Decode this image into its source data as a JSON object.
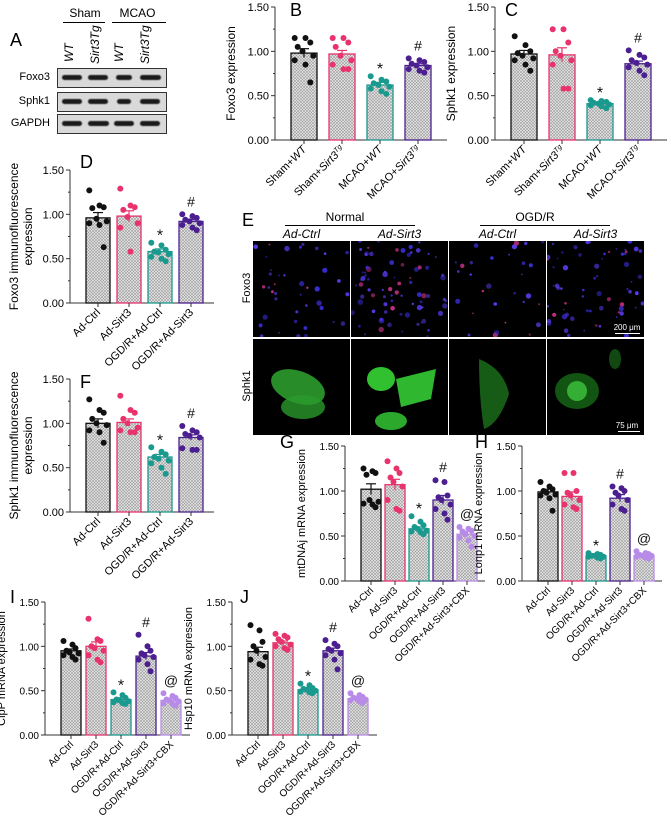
{
  "figure": {
    "panel_letters": [
      "A",
      "B",
      "C",
      "D",
      "E",
      "F",
      "G",
      "H",
      "I",
      "J"
    ]
  },
  "panelA": {
    "letter": "A",
    "group_headers": [
      "Sham",
      "MCAO"
    ],
    "column_labels": [
      "WT",
      "Sirt3Tg",
      "WT",
      "Sirt3Tg"
    ],
    "row_labels": [
      "Foxo3",
      "Sphk1",
      "GAPDH"
    ],
    "band_widths": [
      [
        1,
        1,
        0.8,
        1.05
      ],
      [
        1,
        1,
        0.7,
        1
      ],
      [
        1,
        1.05,
        1,
        1
      ]
    ]
  },
  "panelE": {
    "letter": "E",
    "group_headers": [
      "Normal",
      "OGD/R"
    ],
    "column_labels": [
      "Ad-Ctrl",
      "Ad-Sirt3",
      "Ad-Ctrl",
      "Ad-Sirt3"
    ],
    "row_labels": [
      "Foxo3",
      "Sphk1"
    ],
    "scale_bars": [
      "200 μm",
      "75 μm"
    ]
  },
  "chart_data": [
    {
      "id": "B",
      "type": "bar",
      "title": "",
      "ylabel": "Foxo3 expression",
      "categories": [
        "Sham+WT",
        "Sham+Sirt3Tg",
        "MCAO+WT",
        "MCAO+Sirt3Tg"
      ],
      "values": [
        0.98,
        0.97,
        0.62,
        0.84
      ],
      "sem": [
        0.05,
        0.04,
        0.03,
        0.02
      ],
      "points": [
        [
          1.15,
          1.15,
          1.1,
          1.05,
          1.0,
          0.95,
          0.9,
          0.85,
          0.65
        ],
        [
          1.15,
          1.15,
          1.1,
          1.05,
          0.95,
          0.9,
          0.85,
          0.8,
          0.8
        ],
        [
          0.72,
          0.68,
          0.66,
          0.64,
          0.62,
          0.6,
          0.58,
          0.55,
          0.52
        ],
        [
          0.92,
          0.9,
          0.88,
          0.86,
          0.84,
          0.82,
          0.8,
          0.78,
          0.76
        ]
      ],
      "annotations": [
        "",
        "",
        "*",
        "#"
      ],
      "ylim": [
        0,
        1.5
      ],
      "yticks": [
        "0.00",
        "0.50",
        "1.00",
        "1.50"
      ],
      "colors": [
        "#111111",
        "#e8336d",
        "#1a9a8f",
        "#4b1f8f"
      ]
    },
    {
      "id": "C",
      "type": "bar",
      "title": "",
      "ylabel": "Sphk1 expression",
      "categories": [
        "Sham+WT",
        "Sham+Sirt3Tg",
        "MCAO+WT",
        "MCAO+Sirt3Tg"
      ],
      "values": [
        0.97,
        0.96,
        0.41,
        0.86
      ],
      "sem": [
        0.04,
        0.08,
        0.01,
        0.03
      ],
      "points": [
        [
          1.17,
          1.07,
          1.0,
          0.98,
          0.95,
          0.92,
          0.9,
          0.85,
          0.78
        ],
        [
          1.25,
          1.25,
          1.1,
          1.0,
          0.95,
          0.9,
          0.85,
          0.58,
          0.58
        ],
        [
          0.45,
          0.44,
          0.43,
          0.42,
          0.41,
          0.4,
          0.39,
          0.38,
          0.36
        ],
        [
          1.01,
          0.96,
          0.93,
          0.9,
          0.87,
          0.85,
          0.82,
          0.78,
          0.73
        ]
      ],
      "annotations": [
        "",
        "",
        "*",
        "#"
      ],
      "ylim": [
        0,
        1.5
      ],
      "yticks": [
        "0.00",
        "0.50",
        "1.00",
        "1.50"
      ],
      "colors": [
        "#111111",
        "#e8336d",
        "#1a9a8f",
        "#4b1f8f"
      ]
    },
    {
      "id": "D",
      "type": "bar",
      "title": "",
      "ylabel": "Foxo3 immunofluorescence expression",
      "categories": [
        "Ad-Ctrl",
        "Ad-Sirt3",
        "OGD/R+Ad-Ctrl",
        "OGD/R+Ad-Sirt3"
      ],
      "values": [
        0.96,
        0.98,
        0.58,
        0.92
      ],
      "sem": [
        0.06,
        0.06,
        0.03,
        0.02
      ],
      "points": [
        [
          1.27,
          1.1,
          1.08,
          1.07,
          0.95,
          0.92,
          0.9,
          0.88,
          0.63
        ],
        [
          1.29,
          1.1,
          1.08,
          1.05,
          0.97,
          0.9,
          0.85,
          0.58
        ],
        [
          0.68,
          0.65,
          0.6,
          0.58,
          0.57,
          0.55,
          0.52,
          0.5,
          0.47
        ],
        [
          1.0,
          0.98,
          0.96,
          0.94,
          0.92,
          0.9,
          0.88,
          0.85,
          0.82
        ]
      ],
      "annotations": [
        "",
        "",
        "*",
        "#"
      ],
      "ylim": [
        0,
        1.5
      ],
      "yticks": [
        "0.00",
        "0.50",
        "1.00",
        "1.50"
      ],
      "colors": [
        "#111111",
        "#e8336d",
        "#1a9a8f",
        "#4b1f8f"
      ]
    },
    {
      "id": "F",
      "type": "bar",
      "title": "",
      "ylabel": "Sphk1 immunofluorescence expression",
      "categories": [
        "Ad-Ctrl",
        "Ad-Sirt3",
        "OGD/R+Ad-Ctrl",
        "OGD/R+Ad-Sirt3"
      ],
      "values": [
        1.0,
        1.01,
        0.62,
        0.84
      ],
      "sem": [
        0.05,
        0.04,
        0.03,
        0.03
      ],
      "points": [
        [
          1.27,
          1.15,
          1.12,
          1.05,
          1.0,
          0.98,
          0.92,
          0.9,
          0.78
        ],
        [
          1.31,
          1.15,
          1.12,
          1.05,
          1.0,
          0.95,
          0.92,
          0.9,
          0.9
        ],
        [
          0.73,
          0.68,
          0.65,
          0.62,
          0.6,
          0.58,
          0.55,
          0.5,
          0.43
        ],
        [
          0.97,
          0.92,
          0.9,
          0.88,
          0.86,
          0.84,
          0.72,
          0.7,
          0.7
        ]
      ],
      "annotations": [
        "",
        "",
        "*",
        "#"
      ],
      "ylim": [
        0,
        1.5
      ],
      "yticks": [
        "0.00",
        "0.50",
        "1.00",
        "1.50"
      ],
      "colors": [
        "#111111",
        "#e8336d",
        "#1a9a8f",
        "#4b1f8f"
      ]
    },
    {
      "id": "G",
      "type": "bar",
      "title": "",
      "ylabel": "mtDNAj mRNA expression",
      "categories": [
        "Ad-Ctrl",
        "Ad-Sirt3",
        "OGD/R+Ad-Ctrl",
        "OGD/R+Ad-Sirt3",
        "OGD/R+Ad-Sirt3+CBX"
      ],
      "values": [
        1.02,
        1.07,
        0.58,
        0.9,
        0.52
      ],
      "sem": [
        0.06,
        0.06,
        0.02,
        0.05,
        0.03
      ],
      "points": [
        [
          1.25,
          1.22,
          1.2,
          1.18,
          0.9,
          0.88,
          0.86,
          0.85,
          0.82
        ],
        [
          1.33,
          1.25,
          1.2,
          1.15,
          1.1,
          1.05,
          0.9,
          0.8,
          0.78
        ],
        [
          0.72,
          0.66,
          0.62,
          0.6,
          0.58,
          0.56,
          0.55,
          0.54,
          0.52
        ],
        [
          1.12,
          1.1,
          0.95,
          0.93,
          0.9,
          0.85,
          0.8,
          0.75,
          0.68
        ],
        [
          0.6,
          0.58,
          0.56,
          0.55,
          0.52,
          0.5,
          0.48,
          0.45,
          0.38
        ]
      ],
      "annotations": [
        "",
        "",
        "*",
        "#",
        "@"
      ],
      "ylim": [
        0,
        1.5
      ],
      "yticks": [
        "0.00",
        "0.50",
        "1.00",
        "1.50"
      ],
      "colors": [
        "#111111",
        "#e8336d",
        "#1a9a8f",
        "#4b1f8f",
        "#b98be8"
      ]
    },
    {
      "id": "H",
      "type": "bar",
      "title": "",
      "ylabel": "Lonp1 mRNA expression",
      "categories": [
        "Ad-Ctrl",
        "Ad-Sirt3",
        "OGD/R+Ad-Ctrl",
        "OGD/R+Ad-Sirt3",
        "OGD/R+Ad-Sirt3+CBX"
      ],
      "values": [
        0.99,
        0.94,
        0.28,
        0.92,
        0.28
      ],
      "sem": [
        0.03,
        0.05,
        0.01,
        0.04,
        0.01
      ],
      "points": [
        [
          1.1,
          1.05,
          1.02,
          1.0,
          0.98,
          0.96,
          0.95,
          0.92,
          0.78
        ],
        [
          1.2,
          1.2,
          1.0,
          0.98,
          0.95,
          0.9,
          0.85,
          0.82,
          0.8
        ],
        [
          0.31,
          0.3,
          0.29,
          0.28,
          0.28,
          0.27,
          0.27,
          0.26,
          0.25
        ],
        [
          1.05,
          1.03,
          1.0,
          0.98,
          0.95,
          0.9,
          0.85,
          0.8,
          0.78
        ],
        [
          0.33,
          0.31,
          0.3,
          0.29,
          0.28,
          0.28,
          0.27,
          0.26,
          0.25
        ]
      ],
      "annotations": [
        "",
        "",
        "*",
        "#",
        "@"
      ],
      "ylim": [
        0,
        1.5
      ],
      "yticks": [
        "0.00",
        "0.50",
        "1.00",
        "1.50"
      ],
      "colors": [
        "#111111",
        "#e8336d",
        "#1a9a8f",
        "#4b1f8f",
        "#b98be8"
      ]
    },
    {
      "id": "I",
      "type": "bar",
      "title": "",
      "ylabel": "ClpP mRNA expression",
      "categories": [
        "Ad-Ctrl",
        "Ad-Sirt3",
        "OGD/R+Ad-Ctrl",
        "OGD/R+Ad-Sirt3",
        "OGD/R+Ad-Sirt3+CBX"
      ],
      "values": [
        0.95,
        1.0,
        0.4,
        0.89,
        0.39
      ],
      "sem": [
        0.02,
        0.05,
        0.02,
        0.04,
        0.02
      ],
      "points": [
        [
          1.06,
          1.02,
          0.98,
          0.95,
          0.93,
          0.92,
          0.9,
          0.88,
          0.85
        ],
        [
          1.31,
          1.08,
          1.06,
          1.0,
          0.98,
          0.95,
          0.9,
          0.85,
          0.82
        ],
        [
          0.48,
          0.45,
          0.42,
          0.4,
          0.39,
          0.38,
          0.37,
          0.36,
          0.35
        ],
        [
          1.13,
          1.0,
          0.95,
          0.92,
          0.9,
          0.88,
          0.85,
          0.8,
          0.72
        ],
        [
          0.47,
          0.44,
          0.42,
          0.4,
          0.39,
          0.38,
          0.36,
          0.35,
          0.33
        ]
      ],
      "annotations": [
        "",
        "",
        "*",
        "#",
        "@"
      ],
      "ylim": [
        0,
        1.5
      ],
      "yticks": [
        "0.00",
        "0.50",
        "1.00",
        "1.50"
      ],
      "colors": [
        "#111111",
        "#e8336d",
        "#1a9a8f",
        "#4b1f8f",
        "#b98be8"
      ]
    },
    {
      "id": "J",
      "type": "bar",
      "title": "",
      "ylabel": "Hsp10 mRNA expression",
      "categories": [
        "Ad-Ctrl",
        "Ad-Sirt3",
        "OGD/R+Ad-Ctrl",
        "OGD/R+Ad-Sirt3",
        "OGD/R+Ad-Sirt3+CBX"
      ],
      "values": [
        0.94,
        1.04,
        0.51,
        0.95,
        0.41
      ],
      "sem": [
        0.05,
        0.02,
        0.01,
        0.03,
        0.01
      ],
      "points": [
        [
          1.24,
          1.18,
          1.05,
          1.0,
          0.95,
          0.88,
          0.85,
          0.8,
          0.78
        ],
        [
          1.14,
          1.12,
          1.1,
          1.08,
          1.05,
          1.02,
          1.0,
          0.98,
          0.96
        ],
        [
          0.58,
          0.56,
          0.53,
          0.52,
          0.51,
          0.5,
          0.49,
          0.48,
          0.47
        ],
        [
          1.07,
          1.03,
          1.0,
          0.97,
          0.95,
          0.92,
          0.9,
          0.85,
          0.74
        ],
        [
          0.47,
          0.45,
          0.43,
          0.42,
          0.41,
          0.4,
          0.39,
          0.38,
          0.36
        ]
      ],
      "annotations": [
        "",
        "",
        "*",
        "#",
        "@"
      ],
      "ylim": [
        0,
        1.5
      ],
      "yticks": [
        "0.00",
        "0.50",
        "1.00",
        "1.50"
      ],
      "colors": [
        "#111111",
        "#e8336d",
        "#1a9a8f",
        "#4b1f8f",
        "#b98be8"
      ]
    }
  ]
}
